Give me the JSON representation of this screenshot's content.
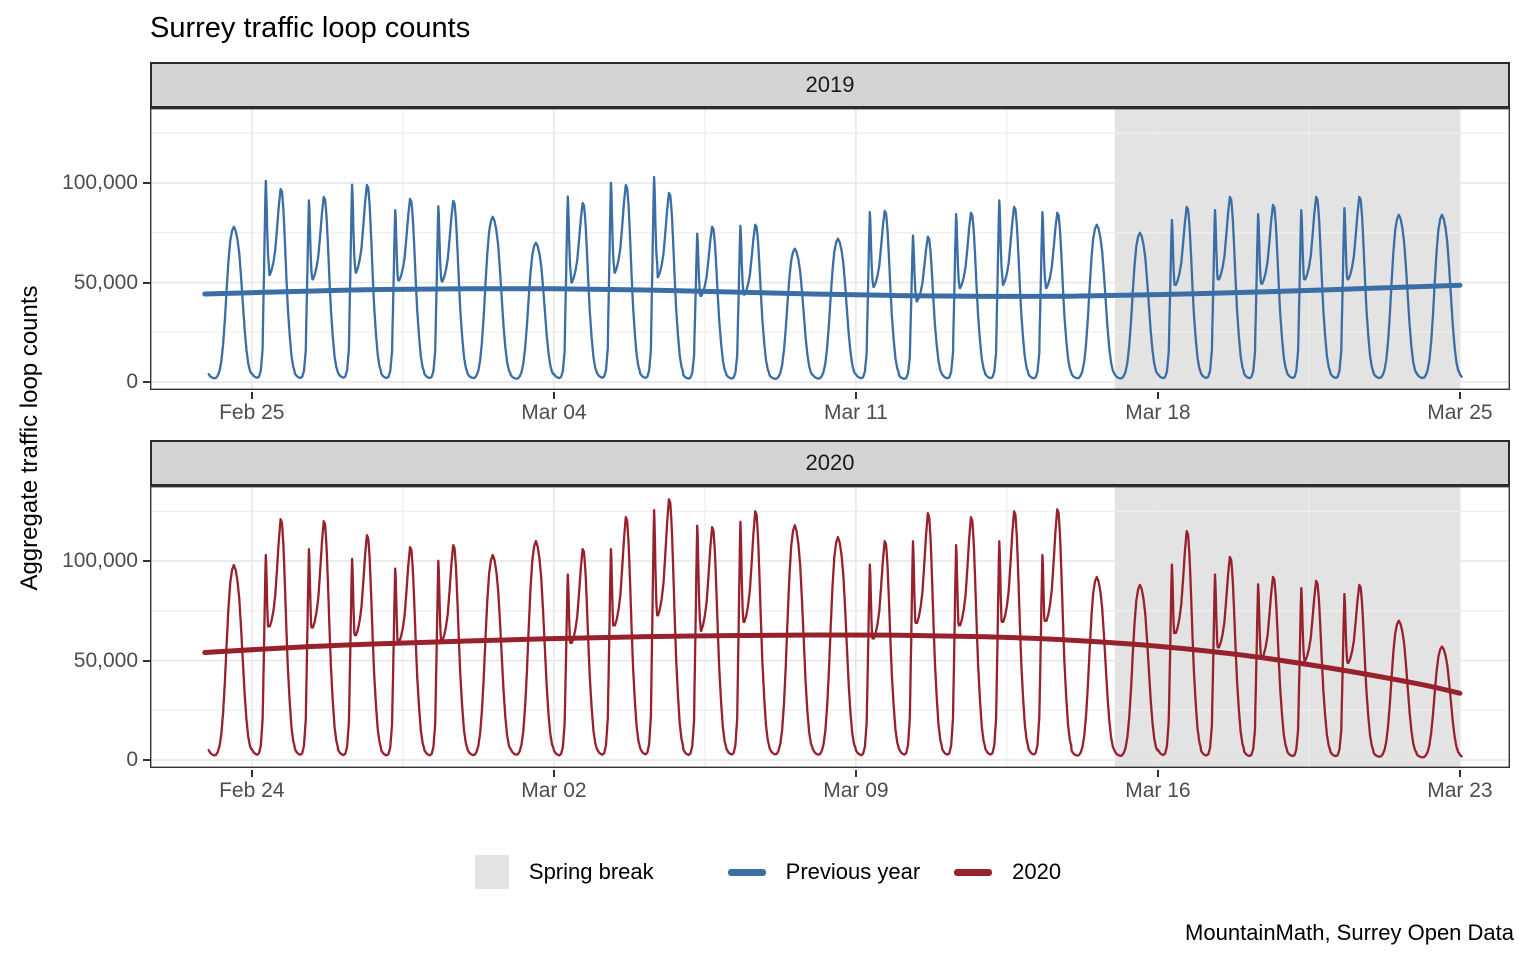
{
  "title": "Surrey traffic loop counts",
  "caption": "MountainMath, Surrey Open Data",
  "y_axis": {
    "title": "Aggregate traffic loop counts",
    "ticks": [
      {
        "label": "0",
        "k": 0
      },
      {
        "label": "50,000",
        "k": 50
      },
      {
        "label": "100,000",
        "k": 100
      }
    ]
  },
  "legend": {
    "band": {
      "label": "Spring break",
      "color": "#e3e3e3"
    },
    "series": [
      {
        "label": "Previous year",
        "color": "#3a6ea5"
      },
      {
        "label": "2020",
        "color": "#97212c"
      }
    ]
  },
  "colors": {
    "band": "#e3e3e3",
    "strip_fill": "#d4d4d4",
    "grid_major": "#e6e6e6",
    "grid_minor": "#efefef",
    "panel_border": "#333333",
    "axis_text": "#4d4d4d"
  },
  "chart_data": {
    "type": "line",
    "title": "Surrey traffic loop counts",
    "ylabel": "Aggregate traffic loop counts",
    "y_unit_multiplier": 1000,
    "y_ticks_k": [
      0,
      50,
      100
    ],
    "y_minor_ticks_k": [
      25,
      75,
      125
    ],
    "grid": true,
    "legend_position": "bottom",
    "panels": [
      {
        "facet": "2019",
        "series_label": "Previous year",
        "color": "#3a6ea5",
        "x_ticks": [
          {
            "label": "Feb 25",
            "day": 1
          },
          {
            "label": "Mar 04",
            "day": 8
          },
          {
            "label": "Mar 11",
            "day": 15
          },
          {
            "label": "Mar 18",
            "day": 22
          },
          {
            "label": "Mar 25",
            "day": 29
          }
        ],
        "spring_break": {
          "from_day": 21,
          "to_day": 29,
          "from_date": "Mar 17",
          "to_date": "Mar 25"
        },
        "start": 0,
        "end": 29.05,
        "days": [
          [
            "Feb 24",
            "we",
            78,
            78
          ],
          [
            "Feb 25",
            "wd",
            103,
            97
          ],
          [
            "Feb 26",
            "wd",
            93,
            93
          ],
          [
            "Feb 27",
            "wd",
            101,
            99
          ],
          [
            "Feb 28",
            "wd",
            88,
            92
          ],
          [
            "Mar 01",
            "wd",
            90,
            91
          ],
          [
            "Mar 02",
            "we",
            83,
            83
          ],
          [
            "Mar 03",
            "we",
            70,
            70
          ],
          [
            "Mar 04",
            "wd",
            95,
            90
          ],
          [
            "Mar 05",
            "wd",
            102,
            99
          ],
          [
            "Mar 06",
            "wd",
            105,
            95
          ],
          [
            "Mar 07",
            "wd",
            76,
            78
          ],
          [
            "Mar 08",
            "wd",
            80,
            79
          ],
          [
            "Mar 09",
            "we",
            67,
            67
          ],
          [
            "Mar 10",
            "we",
            72,
            72
          ],
          [
            "Mar 11",
            "wd",
            87,
            86
          ],
          [
            "Mar 12",
            "wd",
            75,
            73
          ],
          [
            "Mar 13",
            "wd",
            86,
            85
          ],
          [
            "Mar 14",
            "wd",
            93,
            88
          ],
          [
            "Mar 15",
            "wd",
            87,
            85
          ],
          [
            "Mar 16",
            "we",
            79,
            79
          ],
          [
            "Mar 17",
            "we",
            75,
            75
          ],
          [
            "Mar 18",
            "wd",
            83,
            88
          ],
          [
            "Mar 19",
            "wd",
            88,
            93
          ],
          [
            "Mar 20",
            "wd",
            86,
            89
          ],
          [
            "Mar 21",
            "wd",
            88,
            93
          ],
          [
            "Mar 22",
            "wd",
            89,
            93
          ],
          [
            "Mar 23",
            "we",
            84,
            84
          ],
          [
            "Mar 24",
            "we",
            84,
            84
          ],
          [
            "Mar 25",
            "wd",
            84,
            84
          ]
        ],
        "trend": [
          [
            -0.09,
            44.2
          ],
          [
            2,
            45.5
          ],
          [
            4,
            46.5
          ],
          [
            6,
            46.9
          ],
          [
            8,
            46.9
          ],
          [
            10,
            46.3
          ],
          [
            12,
            45.3
          ],
          [
            14,
            44.2
          ],
          [
            16,
            43.4
          ],
          [
            18,
            43.0
          ],
          [
            20,
            43.1
          ],
          [
            22,
            43.9
          ],
          [
            24,
            45.0
          ],
          [
            26,
            46.4
          ],
          [
            28,
            47.9
          ],
          [
            29,
            48.6
          ]
        ]
      },
      {
        "facet": "2020",
        "series_label": "2020",
        "color": "#97212c",
        "x_ticks": [
          {
            "label": "Feb 24",
            "day": 1
          },
          {
            "label": "Mar 02",
            "day": 8
          },
          {
            "label": "Mar 09",
            "day": 15
          },
          {
            "label": "Mar 16",
            "day": 22
          },
          {
            "label": "Mar 23",
            "day": 29
          }
        ],
        "spring_break": {
          "from_day": 21,
          "to_day": 29,
          "from_date": "Mar 15",
          "to_date": "Mar 23"
        },
        "start": 0,
        "end": 29.05,
        "days": [
          [
            "Feb 23",
            "we",
            98,
            98
          ],
          [
            "Feb 24",
            "wd",
            105,
            121
          ],
          [
            "Feb 25",
            "wd",
            108,
            120
          ],
          [
            "Feb 26",
            "wd",
            103,
            113
          ],
          [
            "Feb 27",
            "wd",
            98,
            107
          ],
          [
            "Feb 28",
            "wd",
            102,
            108
          ],
          [
            "Feb 29",
            "we",
            103,
            103
          ],
          [
            "Mar 01",
            "we",
            110,
            110
          ],
          [
            "Mar 02",
            "wd",
            95,
            106
          ],
          [
            "Mar 03",
            "wd",
            108,
            122
          ],
          [
            "Mar 04",
            "wd",
            128,
            131
          ],
          [
            "Mar 05",
            "wd",
            120,
            117
          ],
          [
            "Mar 06",
            "wd",
            122,
            125
          ],
          [
            "Mar 07",
            "we",
            118,
            118
          ],
          [
            "Mar 08",
            "we",
            112,
            112
          ],
          [
            "Mar 09",
            "wd",
            100,
            110
          ],
          [
            "Mar 10",
            "wd",
            112,
            124
          ],
          [
            "Mar 11",
            "wd",
            110,
            122
          ],
          [
            "Mar 12",
            "wd",
            112,
            125
          ],
          [
            "Mar 13",
            "wd",
            105,
            126
          ],
          [
            "Mar 14",
            "we",
            92,
            92
          ],
          [
            "Mar 15",
            "we",
            88,
            88
          ],
          [
            "Mar 16",
            "wd",
            100,
            115
          ],
          [
            "Mar 17",
            "wd",
            95,
            102
          ],
          [
            "Mar 18",
            "wd",
            90,
            92
          ],
          [
            "Mar 19",
            "wd",
            88,
            90
          ],
          [
            "Mar 20",
            "wd",
            85,
            88
          ],
          [
            "Mar 21",
            "we",
            70,
            70
          ],
          [
            "Mar 22",
            "we",
            57,
            57
          ],
          [
            "Mar 23",
            "wd",
            57,
            57
          ]
        ],
        "trend": [
          [
            -0.09,
            54.0
          ],
          [
            2,
            56.6
          ],
          [
            4,
            58.4
          ],
          [
            6,
            59.8
          ],
          [
            8,
            61.0
          ],
          [
            10,
            61.9
          ],
          [
            12,
            62.5
          ],
          [
            14,
            62.8
          ],
          [
            16,
            62.7
          ],
          [
            18,
            61.9
          ],
          [
            20,
            60.2
          ],
          [
            22,
            57.2
          ],
          [
            24,
            52.6
          ],
          [
            26,
            46.2
          ],
          [
            28,
            38.4
          ],
          [
            29,
            33.5
          ]
        ]
      }
    ]
  }
}
